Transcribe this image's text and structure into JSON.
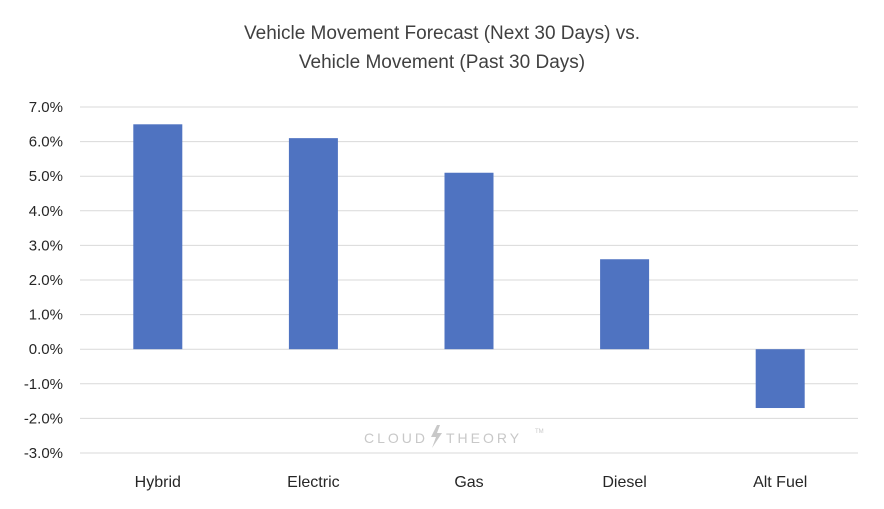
{
  "chart_data": {
    "type": "bar",
    "title_lines": [
      "Vehicle Movement Forecast (Next 30 Days) vs.",
      "Vehicle Movement (Past 30 Days)"
    ],
    "categories": [
      "Hybrid",
      "Electric",
      "Gas",
      "Diesel",
      "Alt Fuel"
    ],
    "values": [
      6.5,
      6.1,
      5.1,
      2.6,
      -1.7
    ],
    "unit": "%",
    "ylim": [
      -3,
      7
    ],
    "yticks": [
      7,
      6,
      5,
      4,
      3,
      2,
      1,
      0,
      -1,
      -2,
      -3
    ],
    "ytick_labels": [
      "7.0%",
      "6.0%",
      "5.0%",
      "4.0%",
      "3.0%",
      "2.0%",
      "1.0%",
      "0.0%",
      "-1.0%",
      "-2.0%",
      "-3.0%"
    ],
    "grid": true,
    "bar_color": "#4f73c1",
    "grid_color": "#d9d9d9",
    "xlabel": "",
    "ylabel": ""
  },
  "watermark": {
    "left": "CLOUD",
    "right": "THEORY",
    "tm": "TM",
    "bolt_icon": "lightning-bolt-icon"
  }
}
